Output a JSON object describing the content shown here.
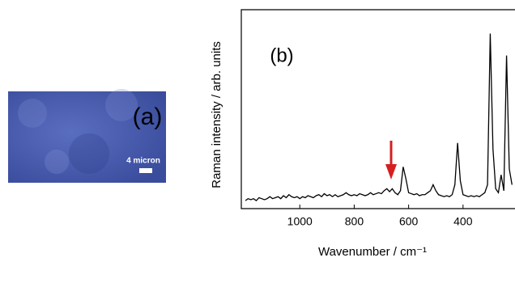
{
  "image_panel": {
    "label": "(a)",
    "scale_bar": "4 micron"
  },
  "chart_data": {
    "type": "line",
    "panel_label": "(b)",
    "x_label": "Wavenumber / cm⁻¹",
    "y_label": "Raman intensity / arb. units",
    "color": "#000000",
    "x": [
      1200,
      1190,
      1180,
      1170,
      1160,
      1150,
      1140,
      1130,
      1120,
      1110,
      1100,
      1090,
      1080,
      1070,
      1060,
      1050,
      1040,
      1030,
      1020,
      1010,
      1000,
      990,
      980,
      970,
      960,
      950,
      940,
      930,
      920,
      910,
      900,
      890,
      880,
      870,
      860,
      850,
      840,
      830,
      820,
      810,
      800,
      790,
      780,
      770,
      760,
      750,
      740,
      730,
      720,
      710,
      700,
      690,
      680,
      670,
      660,
      650,
      640,
      630,
      620,
      610,
      600,
      590,
      580,
      570,
      560,
      550,
      540,
      530,
      520,
      510,
      500,
      490,
      480,
      470,
      460,
      450,
      440,
      430,
      420,
      410,
      400,
      390,
      380,
      370,
      360,
      350,
      340,
      330,
      320,
      310,
      300,
      290,
      280,
      270,
      260,
      250,
      240,
      230,
      220
    ],
    "values": [
      4,
      5,
      4.5,
      5,
      4,
      5.5,
      5,
      4.5,
      5,
      6,
      5,
      5.5,
      6,
      5,
      6.5,
      5.5,
      7,
      6,
      5.5,
      6,
      5,
      6,
      5.5,
      6.5,
      6,
      5.5,
      6.5,
      7,
      6,
      7.5,
      6.5,
      7,
      6,
      7,
      6,
      6.5,
      7,
      8,
      7,
      6.5,
      7,
      6.5,
      7.5,
      7,
      6.5,
      7,
      8,
      7,
      7.5,
      8,
      7.5,
      9,
      10,
      8.5,
      10,
      8,
      7,
      9,
      21,
      15,
      8,
      7.5,
      7,
      7.5,
      6.5,
      7,
      7,
      8,
      9,
      12,
      9,
      7,
      6.5,
      6,
      6.5,
      6,
      7,
      12,
      33,
      14,
      7,
      6.5,
      6,
      6.5,
      6,
      6.5,
      6,
      7,
      8,
      12,
      88,
      30,
      10,
      8,
      17,
      9,
      77,
      20,
      12
    ],
    "xlim": [
      1215,
      209
    ],
    "ylim": [
      0,
      100
    ],
    "xticks": [
      1000,
      800,
      600,
      400
    ]
  }
}
